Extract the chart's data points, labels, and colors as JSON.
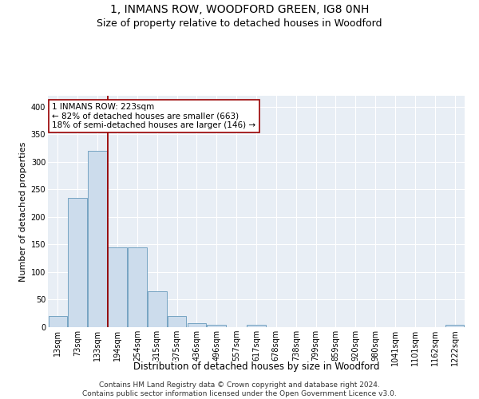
{
  "title": "1, INMANS ROW, WOODFORD GREEN, IG8 0NH",
  "subtitle": "Size of property relative to detached houses in Woodford",
  "xlabel": "Distribution of detached houses by size in Woodford",
  "ylabel": "Number of detached properties",
  "bar_labels": [
    "13sqm",
    "73sqm",
    "133sqm",
    "194sqm",
    "254sqm",
    "315sqm",
    "375sqm",
    "436sqm",
    "496sqm",
    "557sqm",
    "617sqm",
    "678sqm",
    "738sqm",
    "799sqm",
    "859sqm",
    "920sqm",
    "980sqm",
    "1041sqm",
    "1101sqm",
    "1162sqm",
    "1222sqm"
  ],
  "bar_values": [
    20,
    235,
    320,
    145,
    145,
    65,
    20,
    7,
    5,
    0,
    5,
    0,
    0,
    0,
    0,
    0,
    0,
    0,
    0,
    0,
    4
  ],
  "bar_color": "#ccdcec",
  "bar_edgecolor": "#6699bb",
  "vline_index": 2.5,
  "vline_color": "#990000",
  "annotation_text": "1 INMANS ROW: 223sqm\n← 82% of detached houses are smaller (663)\n18% of semi-detached houses are larger (146) →",
  "annotation_box_facecolor": "#ffffff",
  "annotation_box_edgecolor": "#990000",
  "ylim": [
    0,
    420
  ],
  "yticks": [
    0,
    50,
    100,
    150,
    200,
    250,
    300,
    350,
    400
  ],
  "ax_facecolor": "#e8eef5",
  "grid_color": "#ffffff",
  "footer": "Contains HM Land Registry data © Crown copyright and database right 2024.\nContains public sector information licensed under the Open Government Licence v3.0.",
  "title_fontsize": 10,
  "subtitle_fontsize": 9,
  "ylabel_fontsize": 8,
  "xlabel_fontsize": 8.5,
  "tick_fontsize": 7,
  "annotation_fontsize": 7.5,
  "footer_fontsize": 6.5
}
